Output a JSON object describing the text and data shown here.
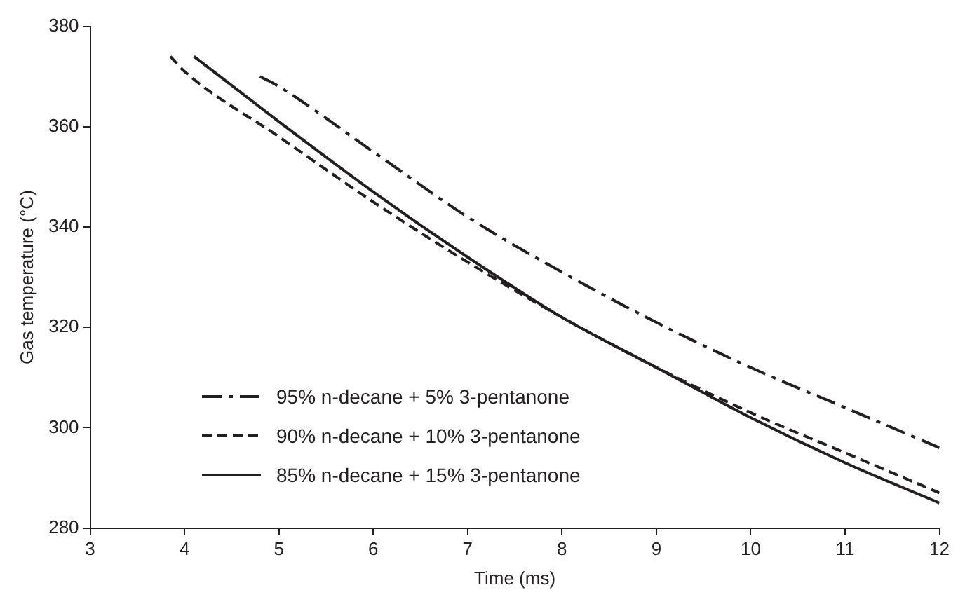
{
  "chart_data": {
    "type": "line",
    "xlabel": "Time (ms)",
    "ylabel": "Gas temperature (°C)",
    "xlim": [
      3,
      12
    ],
    "xticks": [
      3,
      4,
      5,
      6,
      7,
      8,
      9,
      10,
      11,
      12
    ],
    "ylim": [
      280,
      380
    ],
    "yticks": [
      280,
      300,
      320,
      340,
      360,
      380
    ],
    "grid": false,
    "legend": "bottom left",
    "marker": "none",
    "series": [
      {
        "name": "95% n-decane + 5% 3-pentanone",
        "color": "#231f20",
        "line_style": "dashdot",
        "x": [
          4.8,
          5,
          6,
          7,
          8,
          9,
          10,
          11,
          12
        ],
        "values": [
          370,
          368,
          355,
          342,
          331,
          321,
          312,
          304,
          296
        ]
      },
      {
        "name": "90% n-decane + 10% 3-pentanone",
        "color": "#231f20",
        "line_style": "dashed",
        "x": [
          3.85,
          4,
          5,
          6,
          7,
          8,
          9,
          10,
          11,
          12
        ],
        "values": [
          374,
          371,
          358,
          345,
          333,
          322,
          312,
          303,
          295,
          287
        ]
      },
      {
        "name": "85% n-decane + 15% 3-pentanone",
        "color": "#231f20",
        "line_style": "solid",
        "x": [
          4.1,
          5,
          6,
          7,
          8,
          9,
          10,
          11,
          12
        ],
        "values": [
          374,
          361,
          347,
          334,
          322,
          312,
          302,
          293,
          285
        ]
      }
    ]
  }
}
